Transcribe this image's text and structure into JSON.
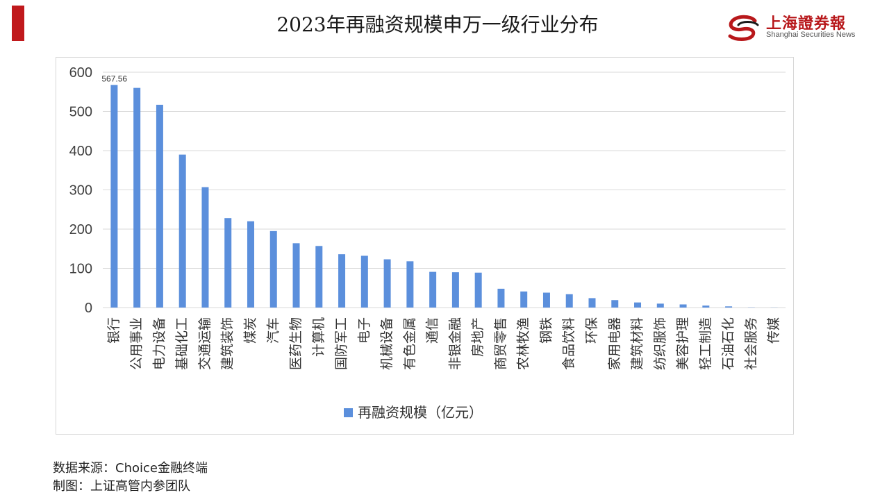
{
  "header": {
    "title": "2023年再融资规模申万一级行业分布",
    "logo_cn": "上海證券報",
    "logo_en": "Shanghai Securities News"
  },
  "colors": {
    "bar": "#5b8fdc",
    "accent": "#c0191c",
    "grid": "#d9d9d9"
  },
  "chart_data": {
    "type": "bar",
    "title": "",
    "xlabel": "",
    "ylabel": "",
    "ylim": [
      0,
      600
    ],
    "yticks": [
      0,
      100,
      200,
      300,
      400,
      500,
      600
    ],
    "grid": true,
    "legend_position": "bottom",
    "categories": [
      "银行",
      "公用事业",
      "电力设备",
      "基础化工",
      "交通运输",
      "建筑装饰",
      "煤炭",
      "汽车",
      "医药生物",
      "计算机",
      "国防军工",
      "电子",
      "机械设备",
      "有色金属",
      "通信",
      "非银金融",
      "房地产",
      "商贸零售",
      "农林牧渔",
      "钢铁",
      "食品饮料",
      "环保",
      "家用电器",
      "建筑材料",
      "纺织服饰",
      "美容护理",
      "轻工制造",
      "石油石化",
      "社会服务",
      "传媒"
    ],
    "series": [
      {
        "name": "再融资规模（亿元）",
        "values": [
          567.56,
          560,
          517,
          390,
          307,
          228,
          220,
          195,
          164,
          157,
          136,
          132,
          123,
          118,
          91,
          90,
          89,
          48,
          41,
          38,
          34,
          24,
          19,
          13,
          10,
          8,
          5,
          3,
          0.5,
          0.3
        ]
      }
    ],
    "data_labels": [
      {
        "index": 0,
        "text": "567.56"
      }
    ]
  },
  "footer": {
    "source": "数据来源：Choice金融终端",
    "credit": "制图：上证高管内参团队"
  }
}
